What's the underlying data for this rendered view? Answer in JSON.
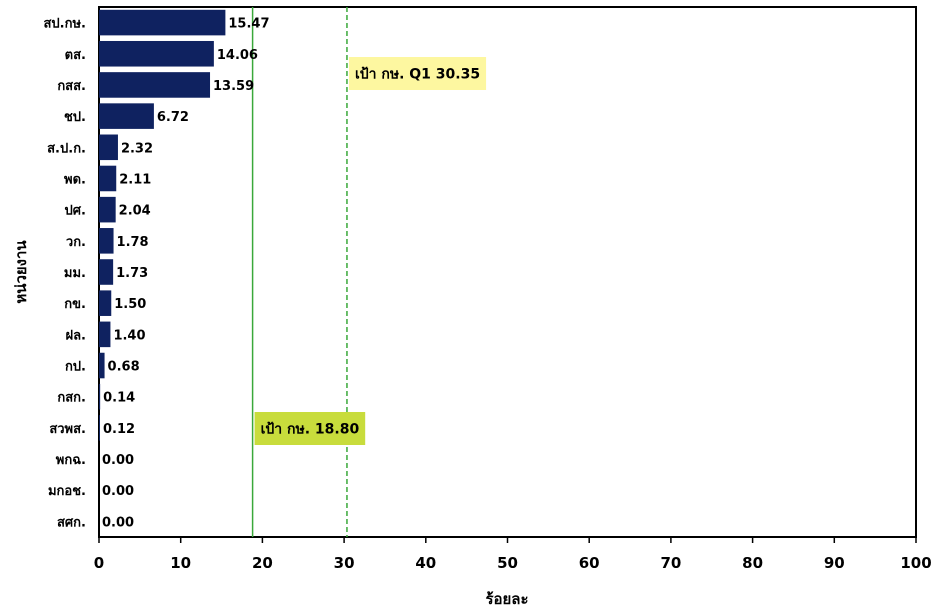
{
  "chart_data": {
    "type": "bar",
    "orientation": "horizontal",
    "categories": [
      "สป.กษ.",
      "ตส.",
      "กสส.",
      "ชป.",
      "ส.ป.ก.",
      "พด.",
      "ปศ.",
      "วก.",
      "มม.",
      "กข.",
      "ฝล.",
      "กป.",
      "กสก.",
      "สวพส.",
      "พกฉ.",
      "มกอช.",
      "สศก."
    ],
    "values": [
      15.47,
      14.06,
      13.59,
      6.72,
      2.32,
      2.11,
      2.04,
      1.78,
      1.73,
      1.5,
      1.4,
      0.68,
      0.14,
      0.12,
      0.0,
      0.0,
      0.0
    ],
    "value_labels": [
      "15.47",
      "14.06",
      "13.59",
      "6.72",
      "2.32",
      "2.11",
      "2.04",
      "1.78",
      "1.73",
      "1.50",
      "1.40",
      "0.68",
      "0.14",
      "0.12",
      "0.00",
      "0.00",
      "0.00"
    ],
    "xlabel": "ร้อยละ",
    "ylabel": "หน่วยงาน",
    "xlim": [
      0,
      100
    ],
    "xticks": [
      0,
      10,
      20,
      30,
      40,
      50,
      60,
      70,
      80,
      90,
      100
    ],
    "xtick_labels": [
      "0",
      "10",
      "20",
      "30",
      "40",
      "50",
      "60",
      "70",
      "80",
      "90",
      "100"
    ],
    "grid": false,
    "bar_color": "#0f2260",
    "reference_lines": [
      {
        "value": 18.8,
        "style": "solid",
        "color": "#3aa83a",
        "label": "เป้า กษ. 18.80",
        "label_bg": "#c8dc3c"
      },
      {
        "value": 30.35,
        "style": "dashed",
        "color": "#3aa83a",
        "label": "เป้า กษ. Q1 30.35",
        "label_bg": "#fdf7a0"
      }
    ]
  }
}
